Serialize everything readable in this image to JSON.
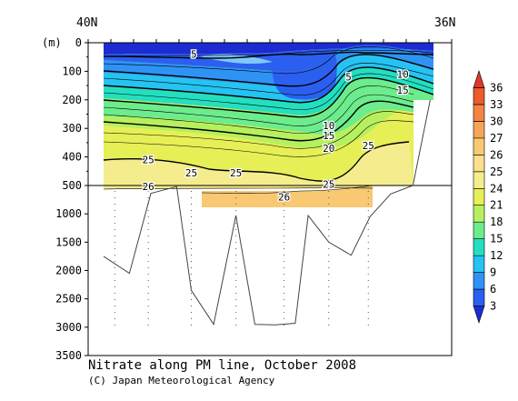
{
  "chart_data": {
    "type": "contour",
    "title": "Nitrate along PM line, October 2008",
    "credit": "(C) Japan Meteorological Agency",
    "x_edge_labels": [
      "40N",
      "36N"
    ],
    "y_unit_label": "(m)",
    "y_upper": {
      "range": [
        0,
        500
      ],
      "ticks": [
        0,
        100,
        200,
        300,
        400,
        500
      ]
    },
    "y_lower": {
      "range": [
        500,
        3500
      ],
      "ticks": [
        1000,
        1500,
        2000,
        2500,
        3000,
        3500
      ]
    },
    "colorbar": {
      "levels": [
        3,
        6,
        9,
        12,
        15,
        18,
        21,
        24,
        25,
        26,
        27,
        30,
        33,
        36
      ],
      "colors": [
        "#1d2bd2",
        "#2a5ff0",
        "#2e93f5",
        "#25c3f2",
        "#23dfc0",
        "#6cec8c",
        "#b6f05e",
        "#e6ef56",
        "#f5ec8e",
        "#fbe08c",
        "#f8c873",
        "#f6a556",
        "#f38540",
        "#ec5b2c",
        "#e2362a"
      ]
    },
    "contour_labels": [
      {
        "text": "5",
        "lat": 38.95,
        "depth": 40
      },
      {
        "text": "5",
        "lat": 37.15,
        "depth": 120
      },
      {
        "text": "10",
        "lat": 36.52,
        "depth": 110
      },
      {
        "text": "15",
        "lat": 36.52,
        "depth": 165
      },
      {
        "text": "10",
        "lat": 37.38,
        "depth": 290
      },
      {
        "text": "15",
        "lat": 37.38,
        "depth": 325
      },
      {
        "text": "20",
        "lat": 37.38,
        "depth": 370
      },
      {
        "text": "25",
        "lat": 36.92,
        "depth": 360
      },
      {
        "text": "25",
        "lat": 39.48,
        "depth": 410
      },
      {
        "text": "25",
        "lat": 38.98,
        "depth": 455
      },
      {
        "text": "25",
        "lat": 38.46,
        "depth": 455
      },
      {
        "text": "25",
        "lat": 37.38,
        "depth": 495
      },
      {
        "text": "26",
        "lat": 39.48,
        "depth": 520
      },
      {
        "text": "26",
        "lat": 37.9,
        "depth": 700
      }
    ],
    "bottom_profile": {
      "lat": [
        40.0,
        39.7,
        39.45,
        39.15,
        38.98,
        38.72,
        38.46,
        38.24,
        38.0,
        37.77,
        37.62,
        37.38,
        37.12,
        36.9,
        36.66,
        36.4,
        36.2
      ],
      "depth": [
        1750,
        2050,
        640,
        520,
        2350,
        2950,
        1030,
        2950,
        2960,
        2930,
        1030,
        1500,
        1730,
        1050,
        650,
        500,
        200
      ]
    },
    "stations": [
      39.87,
      39.48,
      38.98,
      38.46,
      37.9,
      37.38,
      36.92
    ]
  }
}
